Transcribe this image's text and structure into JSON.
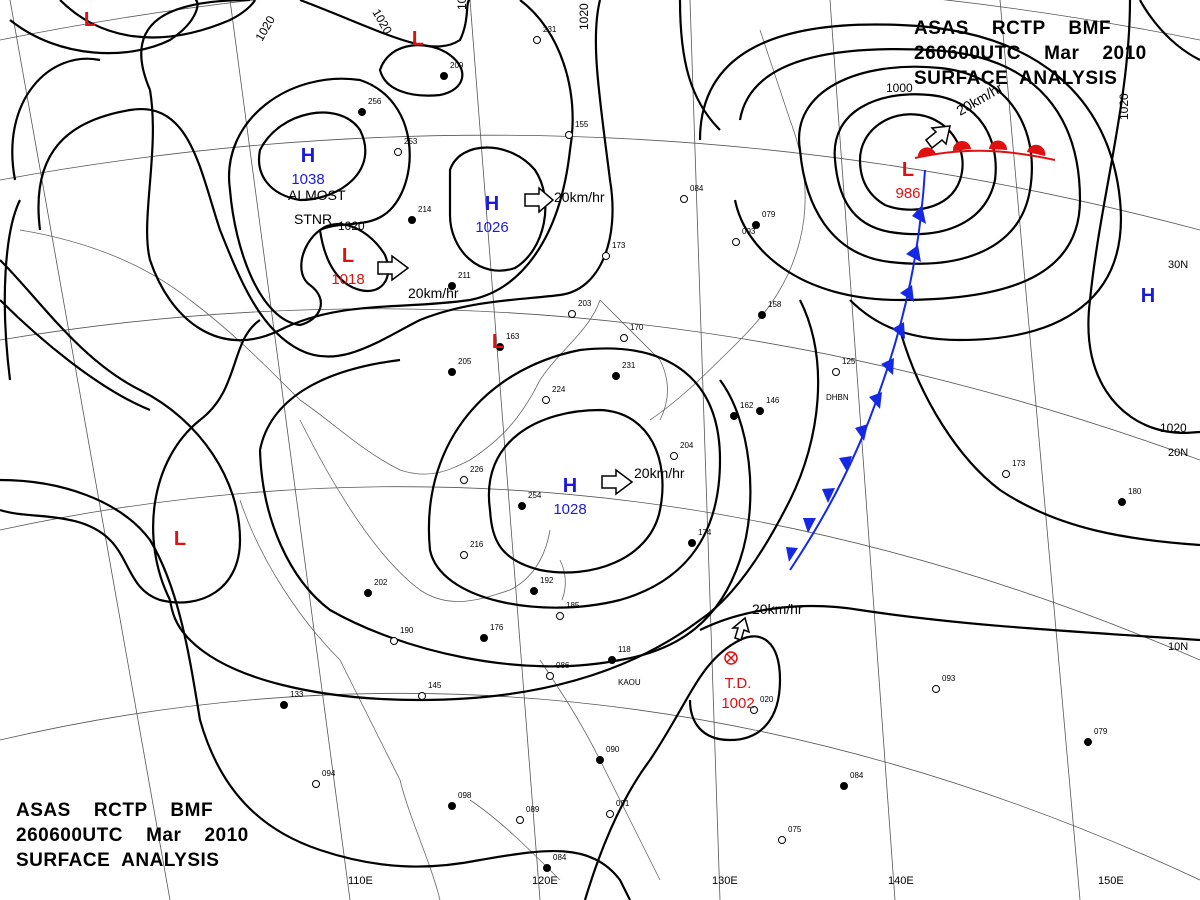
{
  "header": {
    "line1": "ASAS    RCTP    BMF",
    "line2": "260600UTC    Mar    2010",
    "line3": "SURFACE  ANALYSIS"
  },
  "colors": {
    "high": "#1a1adc",
    "low": "#e01010",
    "cold_front": "#1428e6",
    "warm_front": "#e01010",
    "isobar": "#000000",
    "grid": "#666666"
  },
  "longitude_labels": [
    "110E",
    "120E",
    "130E",
    "140E",
    "150E"
  ],
  "latitude_labels": [
    "30N",
    "20N",
    "10N"
  ],
  "isobar_labels": [
    "1020",
    "1020",
    "1020",
    "1020",
    "1020",
    "1020",
    "1000",
    "1020"
  ],
  "systems": [
    {
      "type": "H",
      "pressure": "1038"
    },
    {
      "type": "L",
      "pressure": "1018"
    },
    {
      "type": "H",
      "pressure": "1026"
    },
    {
      "type": "L",
      "pressure": ""
    },
    {
      "type": "H",
      "pressure": "1028"
    },
    {
      "type": "L",
      "pressure": ""
    },
    {
      "type": "L",
      "pressure": "986"
    },
    {
      "type": "H",
      "pressure": ""
    },
    {
      "type": "L",
      "pressure": ""
    },
    {
      "type": "L",
      "pressure": ""
    }
  ],
  "tropical_depression": {
    "label": "T.D.",
    "pressure": "1002"
  },
  "annotations": {
    "almost_line1": "ALMOST",
    "almost_line2": "STNR"
  },
  "motion_labels": [
    "20km/hr",
    "20km/hr",
    "20km/hr",
    "20km/hr",
    "20km/hr"
  ],
  "stations": [
    {
      "id": "DHBN"
    },
    {
      "id": "KAOU"
    }
  ],
  "station_values": [
    "231",
    "209",
    "155",
    "256",
    "253",
    "214",
    "173",
    "211",
    "203",
    "163",
    "170",
    "231",
    "224",
    "205",
    "226",
    "254",
    "216",
    "192",
    "185",
    "176",
    "190",
    "202",
    "145",
    "133",
    "094",
    "098",
    "089",
    "084",
    "091",
    "090",
    "075",
    "084",
    "093",
    "079",
    "084",
    "158",
    "125",
    "146",
    "173",
    "180",
    "093",
    "079",
    "020",
    "118",
    "086",
    "174",
    "204",
    "162"
  ]
}
